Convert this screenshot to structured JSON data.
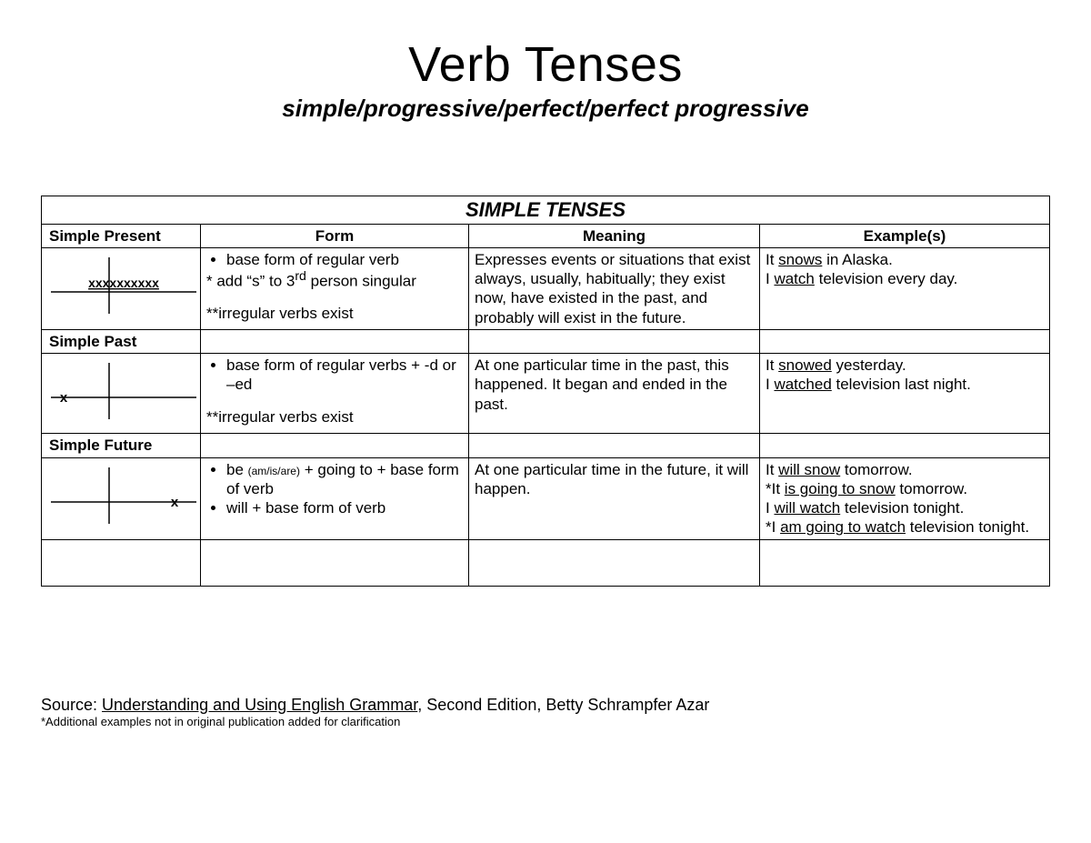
{
  "page": {
    "title": "Verb Tenses",
    "subtitle": "simple/progressive/perfect/perfect progressive"
  },
  "table": {
    "caption": "SIMPLE TENSES",
    "headers": {
      "tense": "Simple Present",
      "form": "Form",
      "meaning": "Meaning",
      "example": "Example(s)"
    },
    "rows": [
      {
        "label": "Simple Present",
        "diagram": {
          "type": "present",
          "marks": "xxxxxxxxxx"
        },
        "form": {
          "bullets": [
            "base form of  regular verb"
          ],
          "lines": [
            "* add “s” to 3<sup>rd</sup> person singular",
            "",
            "**irregular verbs exist"
          ]
        },
        "meaning": "Expresses events or situations that exist always, usually, habitually; they exist now, have existed in the past, and probably will exist in the future.",
        "examples_html": "It <u>snows</u> in Alaska.<br>I <u>watch</u> television every day."
      },
      {
        "label": "Simple Past",
        "diagram": {
          "type": "past",
          "mark": "x"
        },
        "form": {
          "bullets": [
            "base form of regular verbs + -d or –ed"
          ],
          "lines": [
            "",
            "**irregular verbs exist"
          ]
        },
        "meaning": "At one particular time in the past, this happened.  It began and ended in the past.",
        "examples_html": "It <u>snowed</u> yesterday.<br>I <u>watched</u> television last night."
      },
      {
        "label": "Simple Future",
        "diagram": {
          "type": "future",
          "mark": "x"
        },
        "form": {
          "bullets": [
            "be <span class=\"small\">(am/is/are)</span> + going to + base form of verb",
            "will + base form of verb"
          ],
          "lines": []
        },
        "meaning": "At one particular time in the future, it will happen.",
        "examples_html": "It <u>will snow</u> tomorrow.<br>*It <u>is going to snow</u> tomorrow.<br>I <u>will watch</u> television tonight.<br>*I <u>am going to watch</u> television tonight."
      }
    ],
    "tail_empty_rows": 1
  },
  "source": {
    "prefix": "Source:  ",
    "book": "Understanding and Using English Grammar",
    "suffix": ", Second Edition, Betty Schrampfer Azar",
    "note": "*Additional examples not in original publication added for clarification"
  },
  "style": {
    "colors": {
      "text": "#000000",
      "background": "#ffffff",
      "border": "#000000"
    },
    "fonts": {
      "body": "Arial",
      "subtitle": "Comic Sans MS"
    },
    "title_fontsize": 54,
    "subtitle_fontsize": 26,
    "cell_fontsize": 17,
    "caption_fontsize": 22
  }
}
